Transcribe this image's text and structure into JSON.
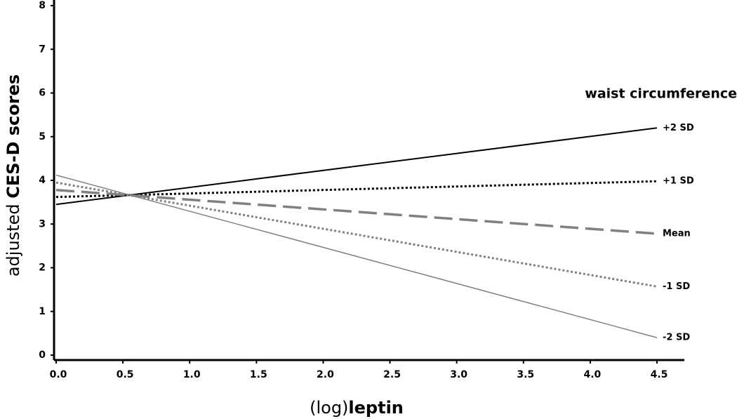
{
  "chart_data": {
    "type": "line",
    "ylabel": "adjusted",
    "ylabel_bold": "CES-D scores",
    "xlabel": "(log)",
    "xlabel_bold": "leptin",
    "legend_title": "waist circumference",
    "x": [
      0,
      4.5
    ],
    "xlim": [
      0,
      4.5
    ],
    "xticks": [
      {
        "value": 0,
        "label": "0.0"
      },
      {
        "value": 0.5,
        "label": "0.5"
      },
      {
        "value": 1,
        "label": "1.0"
      },
      {
        "value": 1.5,
        "label": "1.5"
      },
      {
        "value": 2,
        "label": "2.0"
      },
      {
        "value": 2.5,
        "label": "2.5"
      },
      {
        "value": 3,
        "label": "3.0"
      },
      {
        "value": 3.5,
        "label": "3.5"
      },
      {
        "value": 4,
        "label": "4.0"
      },
      {
        "value": 4.5,
        "label": "4.5"
      }
    ],
    "ylim": [
      0,
      8
    ],
    "yticks": [
      0,
      1,
      2,
      3,
      4,
      5,
      6,
      7,
      8
    ],
    "series": [
      {
        "name": "+2 SD",
        "color": "#000000",
        "dash": "solid",
        "values": [
          3.45,
          5.2
        ]
      },
      {
        "name": "+1 SD",
        "color": "#000000",
        "dash": "dotted",
        "values": [
          3.62,
          3.98
        ]
      },
      {
        "name": "Mean",
        "color": "#808080",
        "dash": "dashed",
        "values": [
          3.78,
          2.78
        ]
      },
      {
        "name": "-1 SD",
        "color": "#808080",
        "dash": "dotted",
        "values": [
          3.95,
          1.57
        ]
      },
      {
        "name": "-2 SD",
        "color": "#808080",
        "dash": "thin",
        "values": [
          4.12,
          0.4
        ]
      }
    ]
  }
}
